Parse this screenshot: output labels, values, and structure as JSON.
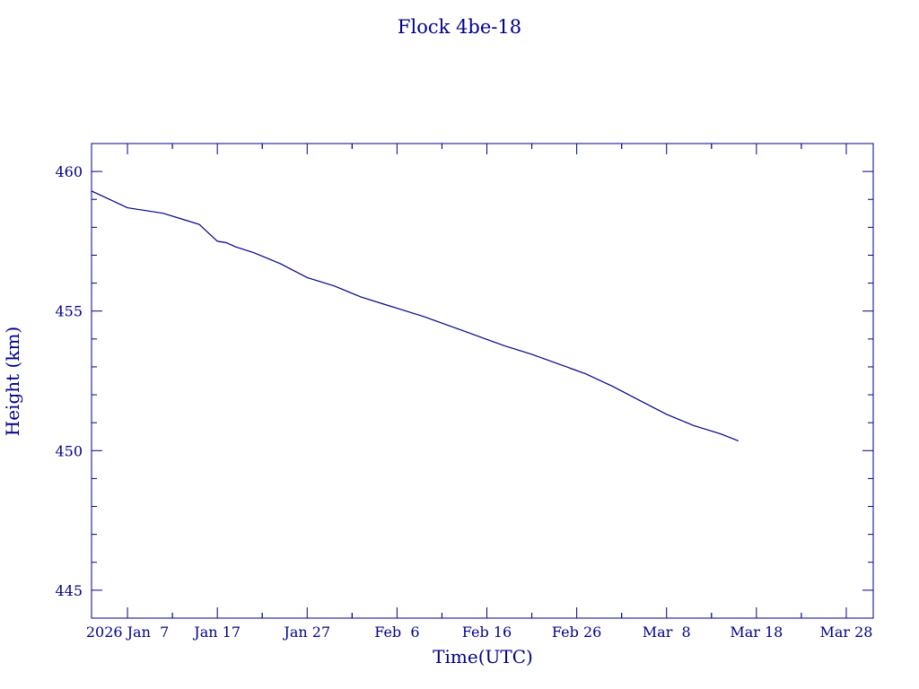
{
  "chart_data": {
    "type": "line",
    "title": "Flock 4be-18",
    "xlabel": "Time(UTC)",
    "ylabel": "Height (km)",
    "ylim": [
      444,
      461
    ],
    "xlim": [
      "2026-01-03",
      "2026-03-31"
    ],
    "x_ticks": [
      {
        "date": "2026-01-07",
        "label": "2026 Jan  7"
      },
      {
        "date": "2026-01-17",
        "label": "Jan 17"
      },
      {
        "date": "2026-01-27",
        "label": "Jan 27"
      },
      {
        "date": "2026-02-06",
        "label": "Feb  6"
      },
      {
        "date": "2026-02-16",
        "label": "Feb 16"
      },
      {
        "date": "2026-02-26",
        "label": "Feb 26"
      },
      {
        "date": "2026-03-08",
        "label": "Mar  8"
      },
      {
        "date": "2026-03-18",
        "label": "Mar 18"
      },
      {
        "date": "2026-03-28",
        "label": "Mar 28"
      }
    ],
    "y_ticks": [
      445,
      450,
      455,
      460
    ],
    "grid": false,
    "colors": {
      "line": "#00008b",
      "axes": "#00008b",
      "text": "#00008b"
    },
    "series": [
      {
        "x": [
          "2026-01-03",
          "2026-01-05",
          "2026-01-07",
          "2026-01-09",
          "2026-01-11",
          "2026-01-13",
          "2026-01-15",
          "2026-01-16",
          "2026-01-17",
          "2026-01-18",
          "2026-01-19",
          "2026-01-21",
          "2026-01-24",
          "2026-01-27",
          "2026-01-30",
          "2026-02-02",
          "2026-02-05",
          "2026-02-06",
          "2026-02-09",
          "2026-02-12",
          "2026-02-15",
          "2026-02-18",
          "2026-02-21",
          "2026-02-24",
          "2026-02-27",
          "2026-03-02",
          "2026-03-05",
          "2026-03-08",
          "2026-03-11",
          "2026-03-14",
          "2026-03-16"
        ],
        "y": [
          459.3,
          459.0,
          458.7,
          458.6,
          458.5,
          458.3,
          458.1,
          457.8,
          457.5,
          457.45,
          457.3,
          457.1,
          456.7,
          456.2,
          455.9,
          455.5,
          455.2,
          455.1,
          454.8,
          454.45,
          454.1,
          453.75,
          453.45,
          453.1,
          452.75,
          452.3,
          451.8,
          451.3,
          450.9,
          450.6,
          450.35
        ]
      }
    ]
  }
}
